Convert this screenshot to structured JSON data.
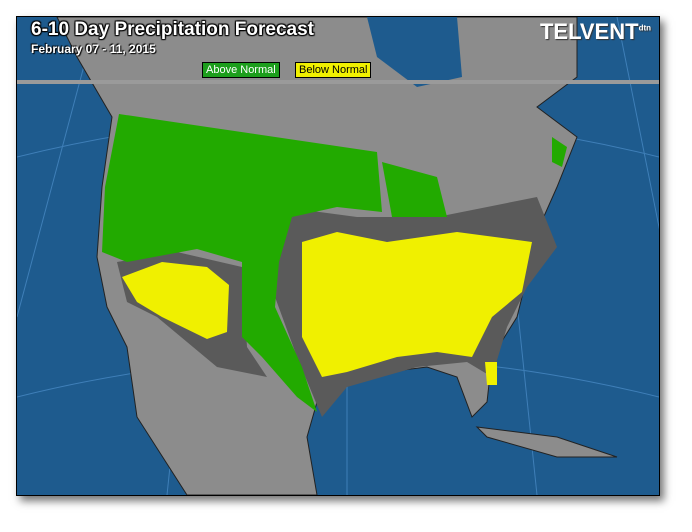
{
  "title": "6-10 Day Precipitation Forecast",
  "date_range": "February 07 - 11, 2015",
  "logo": "TELVENT",
  "logo_badge": "dtn",
  "legend": [
    {
      "label": "Above Normal",
      "color": "#1c9e1c"
    },
    {
      "label": "Below Normal",
      "color": "#f0f000"
    }
  ],
  "colors": {
    "ocean": "#1e5b8e",
    "land": "#8c8c8c",
    "near_normal": "#5a5a5a",
    "above": "#22aa00",
    "below": "#f0f000"
  }
}
